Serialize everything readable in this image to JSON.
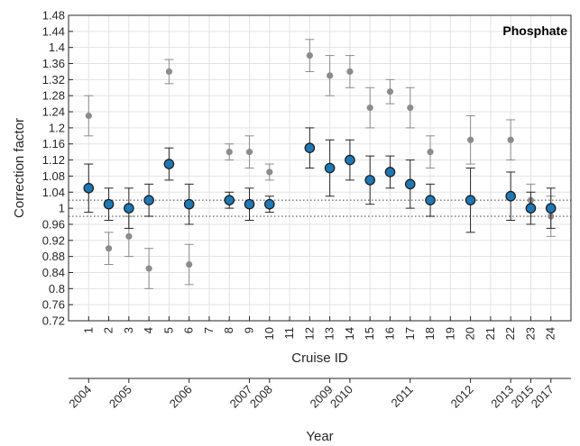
{
  "chart_data": {
    "type": "scatter",
    "title": "Phosphate",
    "ylabel": "Correction factor",
    "xlabel": "Cruise ID",
    "x2label": "Year",
    "ylim": [
      0.72,
      1.48
    ],
    "yticks": [
      "0.72",
      "0.76",
      "0.8",
      "0.84",
      "0.88",
      "0.92",
      "0.96",
      "1",
      "1.04",
      "1.08",
      "1.12",
      "1.16",
      "1.2",
      "1.24",
      "1.28",
      "1.32",
      "1.36",
      "1.4",
      "1.44",
      "1.48"
    ],
    "xlim": [
      0,
      25
    ],
    "xticks": [
      "1",
      "2",
      "3",
      "4",
      "5",
      "6",
      "7",
      "8",
      "9",
      "10",
      "11",
      "12",
      "13",
      "14",
      "15",
      "16",
      "17",
      "18",
      "19",
      "20",
      "21",
      "22",
      "23",
      "24"
    ],
    "grid": true,
    "reference_lines": [
      1.02,
      0.98
    ],
    "series": [
      {
        "color": "#1f77b4",
        "points": [
          {
            "cruise": 1,
            "value": 1.05,
            "low": 0.99,
            "high": 1.11
          },
          {
            "cruise": 2,
            "value": 1.01,
            "low": 0.97,
            "high": 1.05
          },
          {
            "cruise": 3,
            "value": 1.0,
            "low": 0.95,
            "high": 1.05
          },
          {
            "cruise": 4,
            "value": 1.02,
            "low": 0.98,
            "high": 1.06
          },
          {
            "cruise": 5,
            "value": 1.11,
            "low": 1.07,
            "high": 1.15
          },
          {
            "cruise": 6,
            "value": 1.01,
            "low": 0.96,
            "high": 1.06
          },
          {
            "cruise": 8,
            "value": 1.02,
            "low": 1.0,
            "high": 1.04
          },
          {
            "cruise": 9,
            "value": 1.01,
            "low": 0.97,
            "high": 1.05
          },
          {
            "cruise": 10,
            "value": 1.01,
            "low": 0.99,
            "high": 1.03
          },
          {
            "cruise": 12,
            "value": 1.15,
            "low": 1.1,
            "high": 1.2
          },
          {
            "cruise": 13,
            "value": 1.1,
            "low": 1.03,
            "high": 1.17
          },
          {
            "cruise": 14,
            "value": 1.12,
            "low": 1.07,
            "high": 1.17
          },
          {
            "cruise": 15,
            "value": 1.07,
            "low": 1.01,
            "high": 1.13
          },
          {
            "cruise": 16,
            "value": 1.09,
            "low": 1.05,
            "high": 1.13
          },
          {
            "cruise": 17,
            "value": 1.06,
            "low": 1.0,
            "high": 1.12
          },
          {
            "cruise": 18,
            "value": 1.02,
            "low": 0.98,
            "high": 1.06
          },
          {
            "cruise": 20,
            "value": 1.02,
            "low": 0.94,
            "high": 1.1
          },
          {
            "cruise": 22,
            "value": 1.03,
            "low": 0.97,
            "high": 1.09
          },
          {
            "cruise": 23,
            "value": 1.0,
            "low": 0.96,
            "high": 1.04
          },
          {
            "cruise": 24,
            "value": 1.0,
            "low": 0.95,
            "high": 1.05
          }
        ]
      },
      {
        "color": "#8c8c8c",
        "points": [
          {
            "cruise": 1,
            "value": 1.23,
            "low": 1.18,
            "high": 1.28
          },
          {
            "cruise": 2,
            "value": 0.9,
            "low": 0.86,
            "high": 0.94
          },
          {
            "cruise": 3,
            "value": 0.93,
            "low": 0.88,
            "high": 0.98
          },
          {
            "cruise": 4,
            "value": 0.85,
            "low": 0.8,
            "high": 0.9
          },
          {
            "cruise": 5,
            "value": 1.34,
            "low": 1.31,
            "high": 1.37
          },
          {
            "cruise": 6,
            "value": 0.86,
            "low": 0.81,
            "high": 0.91
          },
          {
            "cruise": 8,
            "value": 1.14,
            "low": 1.12,
            "high": 1.16
          },
          {
            "cruise": 9,
            "value": 1.14,
            "low": 1.1,
            "high": 1.18
          },
          {
            "cruise": 10,
            "value": 1.09,
            "low": 1.07,
            "high": 1.11
          },
          {
            "cruise": 12,
            "value": 1.38,
            "low": 1.34,
            "high": 1.42
          },
          {
            "cruise": 13,
            "value": 1.33,
            "low": 1.28,
            "high": 1.38
          },
          {
            "cruise": 14,
            "value": 1.34,
            "low": 1.3,
            "high": 1.38
          },
          {
            "cruise": 15,
            "value": 1.25,
            "low": 1.2,
            "high": 1.3
          },
          {
            "cruise": 16,
            "value": 1.29,
            "low": 1.26,
            "high": 1.32
          },
          {
            "cruise": 17,
            "value": 1.25,
            "low": 1.2,
            "high": 1.3
          },
          {
            "cruise": 18,
            "value": 1.14,
            "low": 1.1,
            "high": 1.18
          },
          {
            "cruise": 20,
            "value": 1.17,
            "low": 1.11,
            "high": 1.23
          },
          {
            "cruise": 22,
            "value": 1.17,
            "low": 1.12,
            "high": 1.22
          },
          {
            "cruise": 23,
            "value": 1.02,
            "low": 0.98,
            "high": 1.06
          },
          {
            "cruise": 24,
            "value": 0.98,
            "low": 0.93,
            "high": 1.03
          }
        ]
      }
    ],
    "year_axis": [
      {
        "label": "2004",
        "cruise": 1
      },
      {
        "label": "2005",
        "cruise": 3
      },
      {
        "label": "2006",
        "cruise": 6
      },
      {
        "label": "2007",
        "cruise": 9
      },
      {
        "label": "2008",
        "cruise": 10
      },
      {
        "label": "2009",
        "cruise": 13
      },
      {
        "label": "2010",
        "cruise": 14
      },
      {
        "label": "2011",
        "cruise": 17
      },
      {
        "label": "2012",
        "cruise": 20
      },
      {
        "label": "2013",
        "cruise": 22
      },
      {
        "label": "2015",
        "cruise": 23
      },
      {
        "label": "2017",
        "cruise": 24
      }
    ]
  }
}
